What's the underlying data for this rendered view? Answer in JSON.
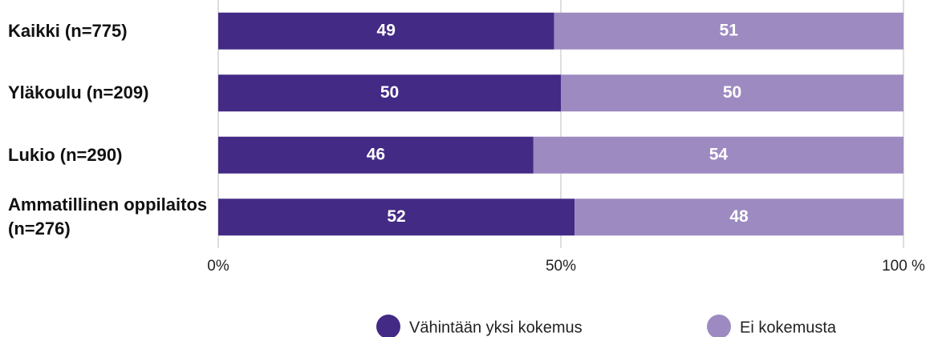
{
  "chart_data": {
    "type": "stacked-bar-horizontal",
    "categories": [
      "Kaikki (n=775)",
      "Yläkoulu (n=209)",
      "Lukio (n=290)",
      "Ammatillinen oppilaitos (n=276)"
    ],
    "series": [
      {
        "name": "Vähintään yksi kokemus",
        "color": "#432a85",
        "values": [
          49,
          50,
          46,
          52
        ]
      },
      {
        "name": "Ei kokemusta",
        "color": "#9d8ac1",
        "values": [
          51,
          50,
          54,
          48
        ]
      }
    ],
    "xlim": [
      0,
      100
    ],
    "xticks": [
      {
        "value": 0,
        "label": "0%"
      },
      {
        "value": 50,
        "label": "50%"
      },
      {
        "value": 100,
        "label": "100 %"
      }
    ],
    "grid": true,
    "legend": "bottom"
  }
}
